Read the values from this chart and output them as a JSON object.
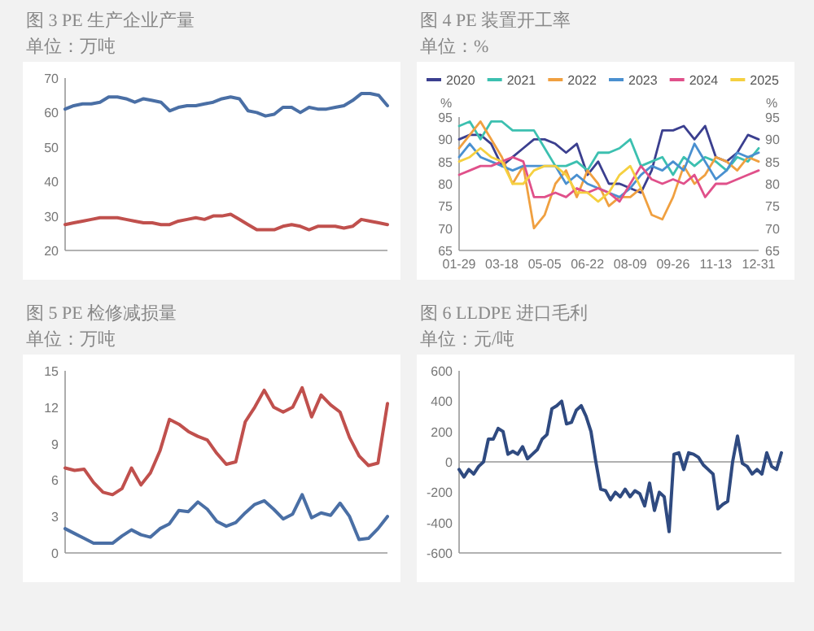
{
  "chart_data": [
    {
      "type": "line",
      "title": "图 3 PE 生产企业产量",
      "subtitle": "单位：万吨",
      "categories": [
        null,
        null,
        null,
        null,
        null,
        null,
        null,
        null,
        null,
        null,
        null,
        null,
        null,
        null,
        null,
        null,
        null,
        null,
        null,
        null,
        null,
        null,
        null,
        null,
        null,
        null,
        null,
        null,
        null,
        null,
        null,
        null,
        null,
        null,
        null,
        null,
        null,
        null
      ],
      "ylim": [
        20,
        70
      ],
      "yticks": [
        20,
        30,
        40,
        50,
        60,
        70
      ],
      "series": [
        {
          "color": "#4a6fa5",
          "values": [
            61,
            62,
            62.5,
            62.5,
            63,
            64.5,
            64.5,
            64,
            63,
            64,
            63.5,
            63,
            60.5,
            61.5,
            62,
            62,
            62.5,
            63,
            64,
            64.5,
            64,
            60.5,
            60,
            59,
            59.5,
            61.5,
            61.5,
            60,
            61.5,
            61,
            61,
            61.5,
            62,
            63.5,
            65.5,
            65.5,
            65,
            62
          ]
        },
        {
          "color": "#c0504d",
          "values": [
            27.5,
            28,
            28.5,
            29,
            29.5,
            29.5,
            29.5,
            29,
            28.5,
            28,
            28,
            27.5,
            27.5,
            28.5,
            29,
            29.5,
            29,
            30,
            30,
            30.5,
            29,
            27.5,
            26,
            26,
            26,
            27,
            27.5,
            27,
            26,
            27,
            27,
            27,
            26.5,
            27,
            29,
            28.5,
            28,
            27.5
          ]
        }
      ]
    },
    {
      "type": "line",
      "title": "图 4 PE 装置开工率",
      "subtitle": "单位：%",
      "ylabel": "%",
      "y2label": "%",
      "legend": "top",
      "categories": [
        "01-29",
        null,
        null,
        null,
        "03-18",
        null,
        null,
        null,
        "05-05",
        null,
        null,
        null,
        "06-22",
        null,
        null,
        null,
        "08-09",
        null,
        null,
        null,
        "09-26",
        null,
        null,
        null,
        "11-13",
        null,
        null,
        null,
        "12-31"
      ],
      "ylim": [
        65,
        95
      ],
      "yticks": [
        65,
        70,
        75,
        80,
        85,
        90,
        95
      ],
      "y2lim": [
        65,
        95
      ],
      "y2ticks": [
        65,
        70,
        75,
        80,
        85,
        90,
        95
      ],
      "series": [
        {
          "name": "2020",
          "color": "#3b3f8f",
          "values": [
            90,
            91,
            91,
            89,
            84,
            86,
            88,
            90,
            90,
            89,
            87,
            89,
            82,
            85,
            80,
            80,
            79,
            78,
            83,
            92,
            92,
            93,
            90,
            93,
            86,
            85,
            87,
            91,
            90
          ]
        },
        {
          "name": "2021",
          "color": "#3cc0b0",
          "values": [
            93,
            94,
            90,
            94,
            94,
            92,
            92,
            92,
            88,
            84,
            84,
            85,
            83,
            87,
            87,
            88,
            90,
            84,
            85,
            86,
            82,
            86,
            84,
            86,
            85,
            83,
            86,
            85,
            88
          ]
        },
        {
          "name": "2022",
          "color": "#f0a040",
          "values": [
            88,
            91,
            94,
            90,
            86,
            80,
            84,
            70,
            73,
            80,
            83,
            77,
            83,
            80,
            75,
            77,
            77,
            79,
            73,
            72,
            77,
            84,
            80,
            82,
            86,
            85,
            83,
            86,
            85
          ]
        },
        {
          "name": "2023",
          "color": "#4a90d0",
          "values": [
            86,
            89,
            86,
            85,
            84,
            83,
            84,
            84,
            84,
            84,
            80,
            82,
            80,
            79,
            78,
            77,
            79,
            82,
            84,
            83,
            85,
            83,
            89,
            85,
            81,
            83,
            87,
            86,
            87
          ]
        },
        {
          "name": "2024",
          "color": "#e0508a",
          "values": [
            82,
            83,
            84,
            84,
            85,
            86,
            85,
            77,
            77,
            78,
            77,
            79,
            78,
            79,
            78,
            76,
            80,
            84,
            81,
            80,
            81,
            80,
            82,
            77,
            80,
            80,
            81,
            82,
            83
          ]
        },
        {
          "name": "2025",
          "color": "#f5d040",
          "values": [
            85,
            86,
            88,
            86,
            85,
            80,
            80,
            83,
            84,
            84,
            82,
            78,
            78,
            76,
            78,
            82,
            84,
            79,
            null,
            null,
            null,
            null,
            null,
            null,
            null,
            null,
            null,
            null,
            null
          ]
        }
      ]
    },
    {
      "type": "line",
      "title": "图 5 PE 检修减损量",
      "subtitle": "单位：万吨",
      "categories": [
        null,
        null,
        null,
        null,
        null,
        null,
        null,
        null,
        null,
        null,
        null,
        null,
        null,
        null,
        null,
        null,
        null,
        null,
        null,
        null,
        null,
        null,
        null,
        null,
        null,
        null,
        null,
        null,
        null,
        null,
        null,
        null,
        null,
        null,
        null
      ],
      "ylim": [
        0,
        15
      ],
      "yticks": [
        0,
        3,
        6,
        9,
        12,
        15
      ],
      "series": [
        {
          "color": "#c0504d",
          "values": [
            7.0,
            6.8,
            6.9,
            5.8,
            5.0,
            4.8,
            5.3,
            7.0,
            5.6,
            6.6,
            8.4,
            11.0,
            10.6,
            10.0,
            9.6,
            9.3,
            8.2,
            7.3,
            7.5,
            10.8,
            12.0,
            13.4,
            12.0,
            11.6,
            12.0,
            13.6,
            11.2,
            13.0,
            12.2,
            11.6,
            9.5,
            8.0,
            7.2,
            7.4,
            12.3
          ]
        },
        {
          "color": "#4a6fa5",
          "values": [
            2.0,
            1.6,
            1.2,
            0.8,
            0.8,
            0.8,
            1.4,
            1.9,
            1.5,
            1.3,
            2.0,
            2.4,
            3.5,
            3.4,
            4.2,
            3.6,
            2.6,
            2.2,
            2.5,
            3.3,
            4.0,
            4.3,
            3.6,
            2.8,
            3.2,
            4.8,
            2.9,
            3.3,
            3.1,
            4.1,
            3.0,
            1.1,
            1.2,
            2.0,
            3.0
          ]
        }
      ]
    },
    {
      "type": "line",
      "title": "图 6 LLDPE 进口毛利",
      "subtitle": "单位：元/吨",
      "categories": [
        null,
        null,
        null,
        null,
        null,
        null,
        null,
        null,
        null,
        null,
        null,
        null,
        null,
        null,
        null,
        null,
        null,
        null,
        null,
        null,
        null,
        null,
        null,
        null,
        null,
        null,
        null,
        null,
        null,
        null,
        null,
        null,
        null,
        null,
        null,
        null,
        null,
        null,
        null,
        null,
        null,
        null,
        null,
        null,
        null,
        null,
        null,
        null,
        null,
        null,
        null,
        null,
        null,
        null,
        null,
        null,
        null,
        null,
        null,
        null,
        null,
        null,
        null,
        null,
        null,
        null,
        null
      ],
      "ylim": [
        -600,
        600
      ],
      "yticks": [
        -600,
        -400,
        -200,
        0,
        200,
        400,
        600
      ],
      "ref_lines": [
        {
          "axis": "y",
          "value": 0,
          "color": "#b0b0b0"
        }
      ],
      "series": [
        {
          "color": "#2f4a80",
          "values": [
            -50,
            -100,
            -50,
            -80,
            -30,
            0,
            150,
            150,
            220,
            200,
            50,
            70,
            50,
            100,
            20,
            50,
            80,
            150,
            180,
            350,
            370,
            400,
            250,
            260,
            340,
            370,
            300,
            200,
            0,
            -180,
            -190,
            -250,
            -200,
            -230,
            -180,
            -230,
            -190,
            -210,
            -290,
            -140,
            -320,
            -200,
            -230,
            -460,
            50,
            60,
            -50,
            60,
            50,
            30,
            -20,
            -50,
            -80,
            -310,
            -280,
            -260,
            0,
            170,
            -10,
            -30,
            -80,
            -50,
            -80,
            60,
            -30,
            -50,
            60
          ]
        }
      ]
    }
  ]
}
